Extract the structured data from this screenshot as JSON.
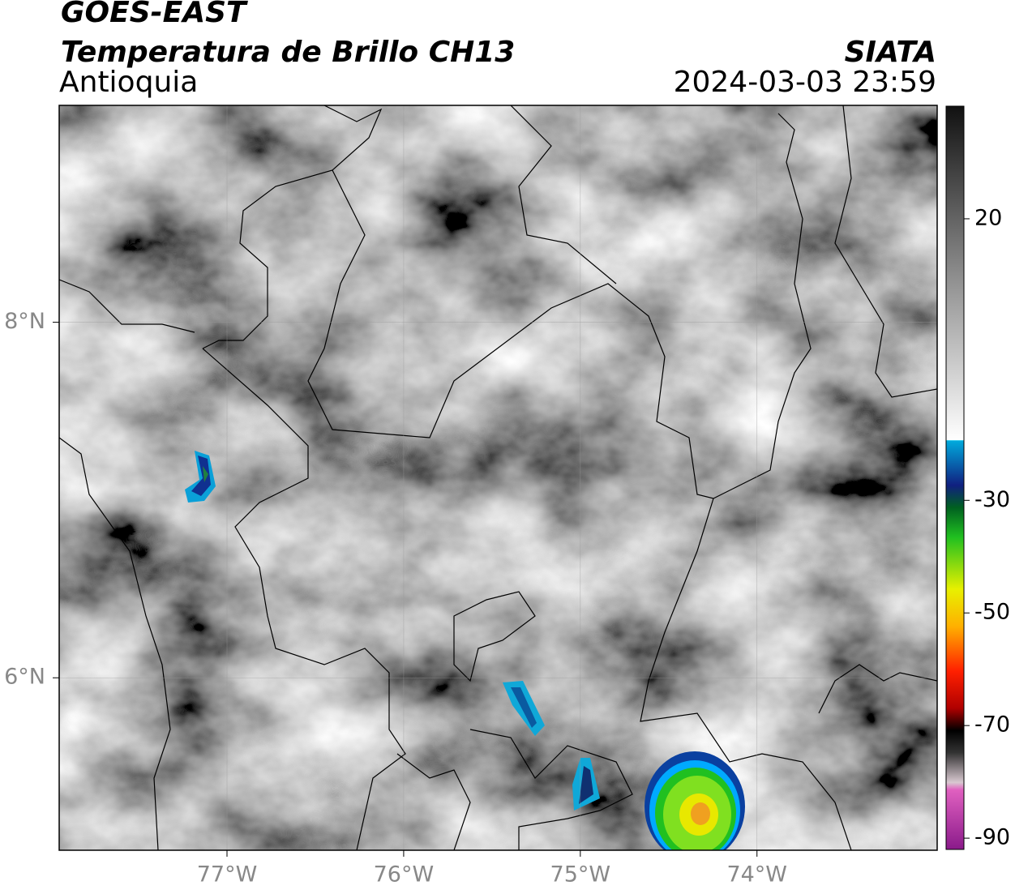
{
  "header": {
    "title": "GOES-EAST",
    "subtitle": "Temperatura de Brillo CH13",
    "region": "Antioquia",
    "source": "SIATA",
    "datetime": "2024-03-03 23:59"
  },
  "map": {
    "lonlim": [
      -77.95,
      -72.98
    ],
    "latlim": [
      5.03,
      9.22
    ],
    "lonticks": [
      {
        "value": -77,
        "label": "77°W"
      },
      {
        "value": -76,
        "label": "76°W"
      },
      {
        "value": -75,
        "label": "75°W"
      },
      {
        "value": -74,
        "label": "74°W"
      }
    ],
    "latticks": [
      {
        "value": 8,
        "label": "8°N"
      },
      {
        "value": 6,
        "label": "6°N"
      }
    ],
    "grid": true
  },
  "colorbar": {
    "lim": [
      -92,
      40
    ],
    "ticks": [
      20,
      -30,
      -50,
      -70,
      -90
    ]
  }
}
